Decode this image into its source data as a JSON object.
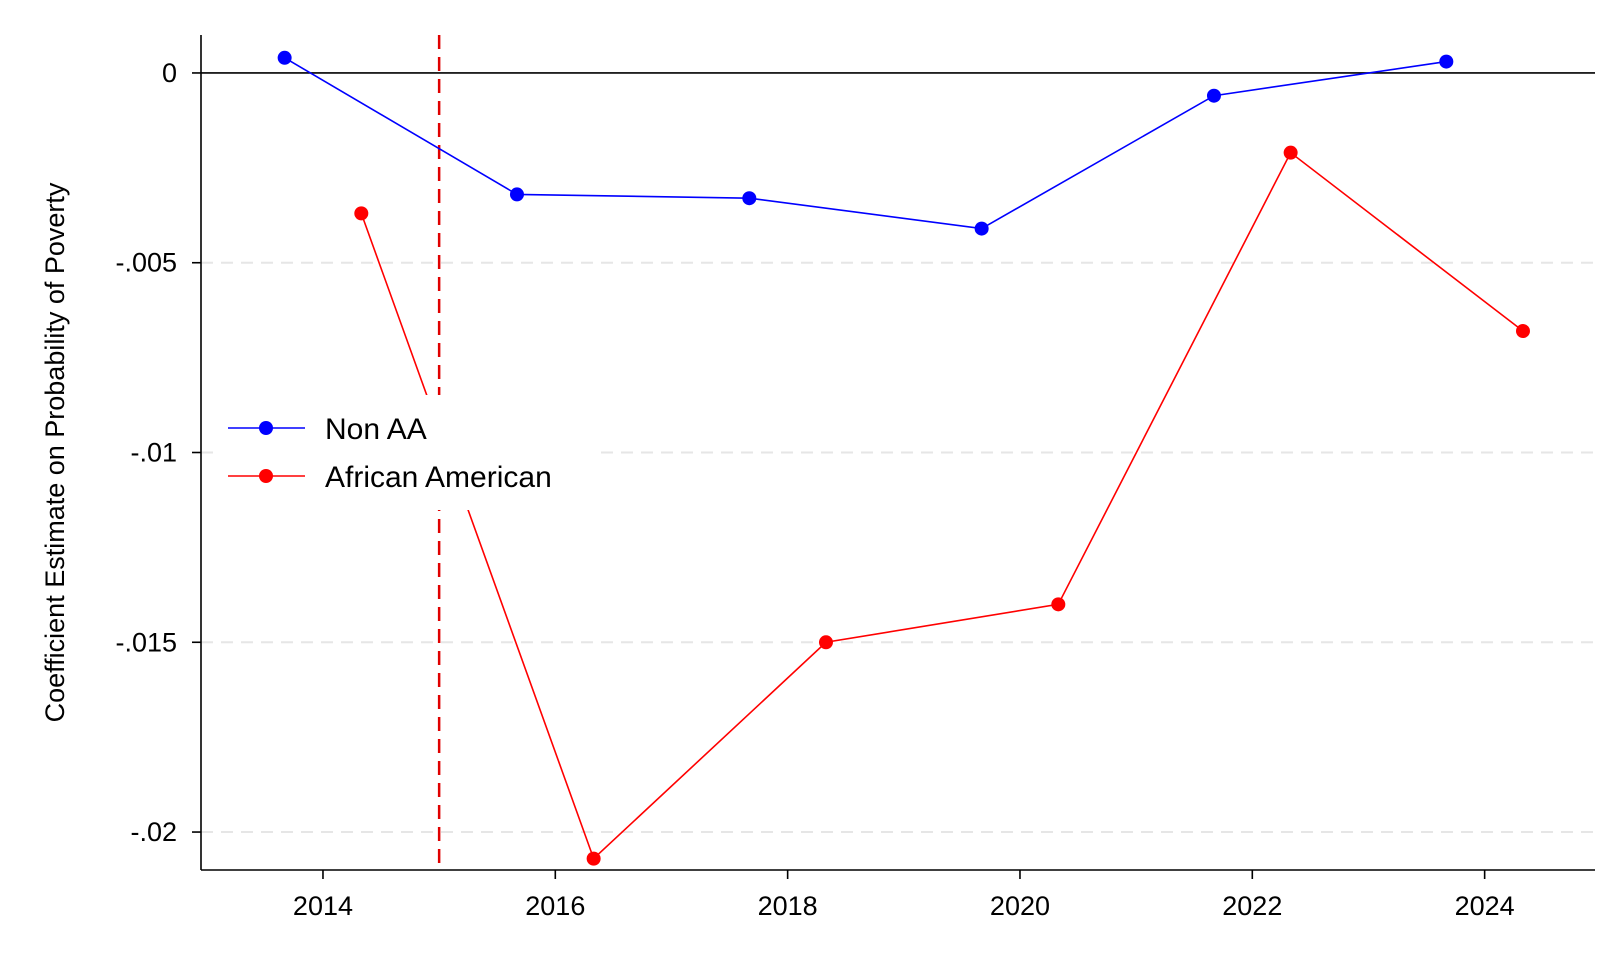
{
  "chart_data": {
    "type": "line",
    "title": "",
    "xlabel": "",
    "ylabel": "Coefficient Estimate on Probability of Poverty",
    "x_ticks": [
      2014,
      2016,
      2018,
      2020,
      2022,
      2024
    ],
    "x_tick_labels": [
      "2014",
      "2016",
      "2018",
      "2020",
      "2022",
      "2024"
    ],
    "y_ticks": [
      0,
      -0.005,
      -0.01,
      -0.015,
      -0.02
    ],
    "y_tick_labels": [
      "0",
      "-.005",
      "-.01",
      "-.015",
      "-.02"
    ],
    "xlim": [
      2012.95,
      2024.95
    ],
    "ylim": [
      -0.021,
      0.001
    ],
    "grid": "horizontal dashed",
    "reference_lines": [
      {
        "type": "horizontal",
        "value": 0,
        "color": "#000000",
        "style": "solid"
      },
      {
        "type": "vertical",
        "value": 2015,
        "color": "#e00000",
        "style": "dashed"
      }
    ],
    "legend_position": "left-center",
    "series": [
      {
        "name": "Non AA",
        "color": "#0000ff",
        "x": [
          2013.67,
          2015.67,
          2017.67,
          2019.67,
          2021.67,
          2023.67
        ],
        "y": [
          0.0004,
          -0.0032,
          -0.0033,
          -0.0041,
          -0.0006,
          0.0003
        ]
      },
      {
        "name": "African American",
        "color": "#ff0000",
        "x": [
          2014.33,
          2016.33,
          2018.33,
          2020.33,
          2022.33,
          2024.33
        ],
        "y": [
          -0.0037,
          -0.0207,
          -0.015,
          -0.014,
          -0.0021,
          -0.0068
        ]
      }
    ]
  }
}
